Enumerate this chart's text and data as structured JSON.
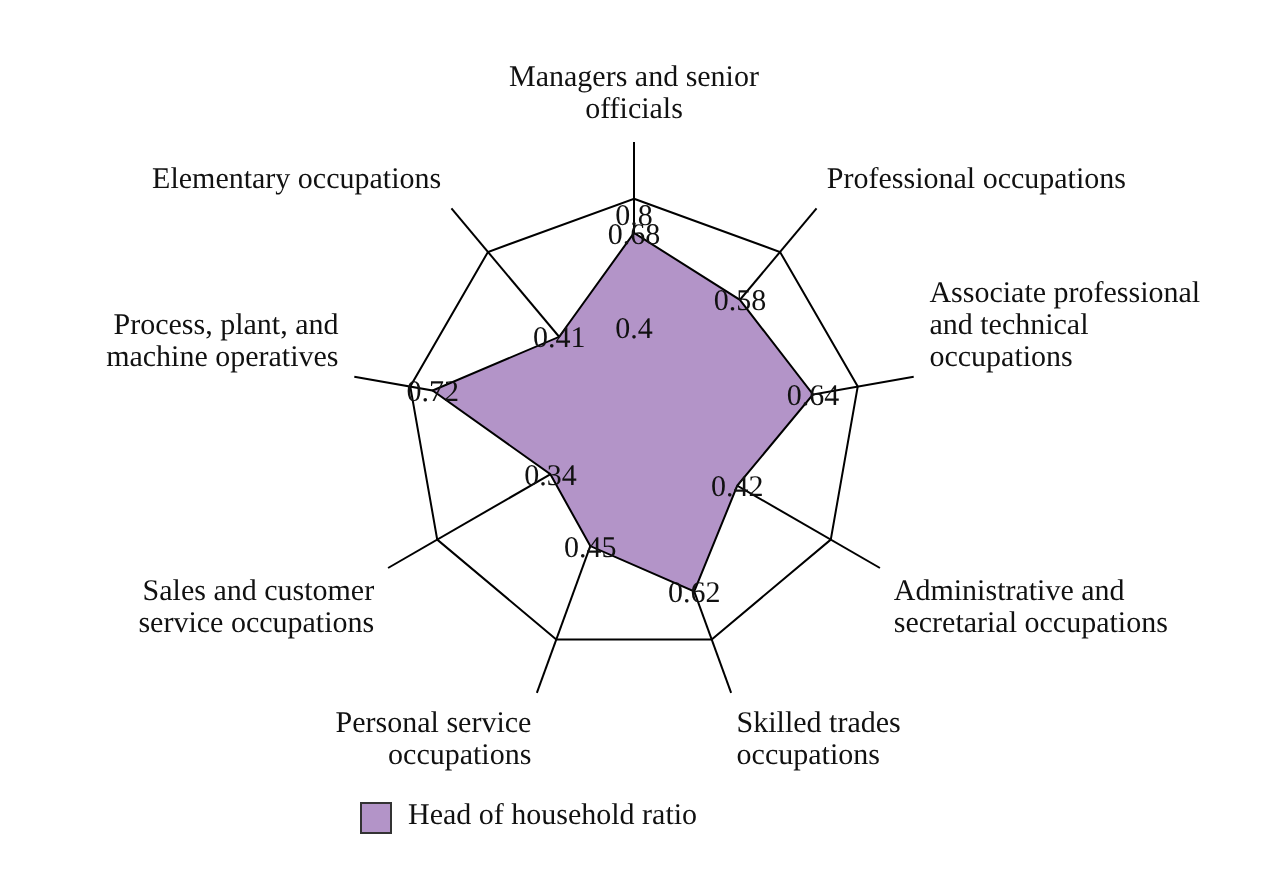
{
  "chart_data": {
    "type": "radar",
    "categories": [
      "Managers and senior officials",
      "Professional occupations",
      "Associate professional and technical occupations",
      "Administrative and secretarial occupations",
      "Skilled trades occupations",
      "Personal service occupations",
      "Sales and customer service occupations",
      "Process, plant, and machine operatives",
      "Elementary occupations"
    ],
    "series": [
      {
        "name": "Head of household ratio",
        "color": "#b394c8",
        "values": [
          0.68,
          0.58,
          0.64,
          0.42,
          0.62,
          0.45,
          0.34,
          0.72,
          0.41
        ]
      }
    ],
    "ylim": [
      0,
      0.8
    ],
    "yticks": [
      0.4,
      0.8
    ],
    "grid": true,
    "data_labels": true,
    "legend": "bottom"
  }
}
